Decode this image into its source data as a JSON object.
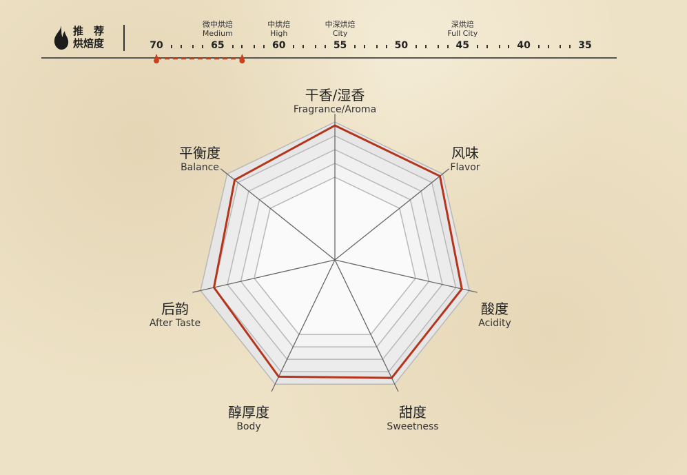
{
  "header": {
    "line1": "推　荐",
    "line2": "烘焙度",
    "icon": "flame-icon"
  },
  "roast_scale": {
    "ticks": [
      70,
      65,
      60,
      55,
      50,
      45,
      40,
      35
    ],
    "categories": [
      {
        "zh": "微中烘焙",
        "en": "Medium",
        "at": 65
      },
      {
        "zh": "中烘焙",
        "en": "High",
        "at": 60
      },
      {
        "zh": "中深烘焙",
        "en": "City",
        "at": 55
      },
      {
        "zh": "深烘焙",
        "en": "Full City",
        "at": 45
      }
    ],
    "recommended_range": [
      70,
      63
    ],
    "marker_color": "#c8401e"
  },
  "chart_data": {
    "type": "radar",
    "axes": [
      {
        "zh": "干香/湿香",
        "en": "Fragrance/Aroma"
      },
      {
        "zh": "风味",
        "en": "Flavor"
      },
      {
        "zh": "酸度",
        "en": "Acidity"
      },
      {
        "zh": "甜度",
        "en": "Sweetness"
      },
      {
        "zh": "醇厚度",
        "en": "Body"
      },
      {
        "zh": "后韵",
        "en": "After Taste"
      },
      {
        "zh": "平衡度",
        "en": "Balance"
      }
    ],
    "values": [
      9.75,
      9.75,
      9.45,
      9.5,
      9.4,
      9.0,
      9.3
    ],
    "range": [
      0,
      10
    ],
    "rings": [
      6,
      7,
      8,
      9,
      10
    ],
    "line_color": "#b5341c"
  }
}
